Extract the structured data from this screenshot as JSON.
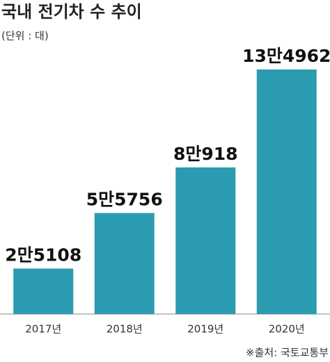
{
  "chart_data": {
    "type": "bar",
    "title": "국내 전기차 수 추이",
    "subtitle": "(단위 : 대)",
    "categories": [
      "2017년",
      "2018년",
      "2019년",
      "2020년"
    ],
    "values": [
      25108,
      55756,
      80918,
      134962
    ],
    "value_labels": [
      "2만5108",
      "5만5756",
      "8만918",
      "13만4962"
    ],
    "color": "#2a9bb0",
    "source": "※출처: 국토교통부"
  }
}
